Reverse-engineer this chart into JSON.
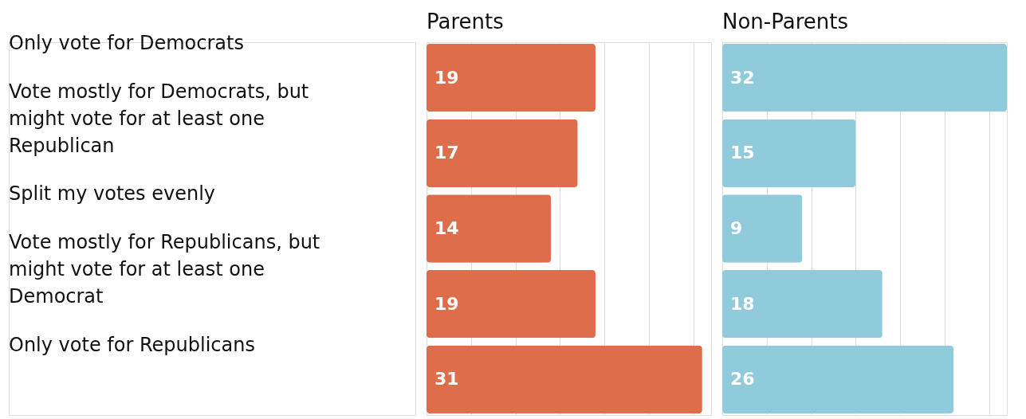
{
  "chart_data": [
    {
      "type": "bar",
      "orientation": "horizontal",
      "title": "Parents",
      "categories": [
        "Only vote for Democrats",
        "Vote mostly for Democrats, but might vote for at least one Republican",
        "Split my votes evenly",
        "Vote mostly for Republicans, but might vote for at least one Democrat",
        "Only vote for Republicans"
      ],
      "values": [
        19,
        17,
        14,
        19,
        31
      ],
      "color": "#de6e4b",
      "xlim": [
        0,
        32
      ],
      "xticks": [
        {
          "value": 5,
          "label": null
        },
        {
          "value": 10,
          "label": null
        },
        {
          "value": 15,
          "label": null
        },
        {
          "value": 20,
          "label": null
        },
        {
          "value": 25,
          "label": null
        },
        {
          "value": 30,
          "label": null
        }
      ],
      "grid": "x",
      "data_labels": true,
      "tick_labels": "y"
    },
    {
      "type": "bar",
      "orientation": "horizontal",
      "title": "Non-Parents",
      "categories": [
        null,
        null,
        null,
        null,
        null
      ],
      "values": [
        32,
        15,
        9,
        18,
        26
      ],
      "color": "#90cbdb",
      "xlim": [
        0,
        32
      ],
      "xticks": [
        {
          "value": 5,
          "label": null
        },
        {
          "value": 10,
          "label": null
        },
        {
          "value": 15,
          "label": null
        },
        {
          "value": 20,
          "label": null
        },
        {
          "value": 25,
          "label": null
        },
        {
          "value": 30,
          "label": null
        }
      ],
      "grid": "x",
      "data_labels": true,
      "tick_labels": false
    }
  ]
}
